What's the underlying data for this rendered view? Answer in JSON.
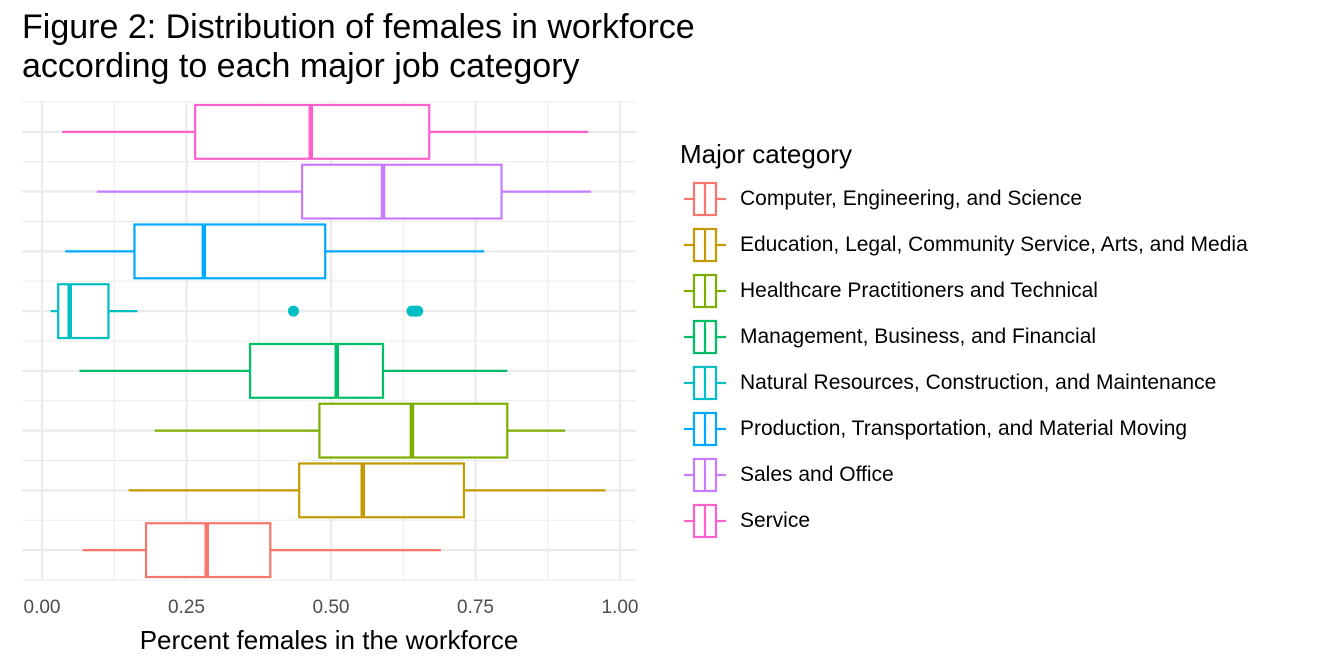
{
  "chart_data": {
    "type": "boxplot",
    "title": "Figure 2: Distribution of females in workforce\naccording to each major job category",
    "xlabel": "Percent females in the workforce",
    "ylabel": "",
    "xlim": [
      0,
      1
    ],
    "x_ticks": [
      "0.00",
      "0.25",
      "0.50",
      "0.75",
      "1.00"
    ],
    "grid": true,
    "legend_title": "Major category",
    "legend_position": "right",
    "series": [
      {
        "name": "Computer, Engineering, and Science",
        "color": "#F8766D",
        "whisker_low": 0.07,
        "q1": 0.18,
        "median": 0.285,
        "q3": 0.395,
        "whisker_high": 0.69,
        "outliers": []
      },
      {
        "name": "Education, Legal, Community Service, Arts, and Media",
        "color": "#C49A00",
        "whisker_low": 0.15,
        "q1": 0.445,
        "median": 0.555,
        "q3": 0.73,
        "whisker_high": 0.975,
        "outliers": []
      },
      {
        "name": "Healthcare Practitioners and Technical",
        "color": "#7CAE00",
        "whisker_low": 0.195,
        "q1": 0.48,
        "median": 0.64,
        "q3": 0.805,
        "whisker_high": 0.905,
        "outliers": []
      },
      {
        "name": "Management, Business, and Financial",
        "color": "#00BE67",
        "whisker_low": 0.065,
        "q1": 0.36,
        "median": 0.51,
        "q3": 0.59,
        "whisker_high": 0.805,
        "outliers": []
      },
      {
        "name": "Natural Resources, Construction, and Maintenance",
        "color": "#00BFC4",
        "whisker_low": 0.015,
        "q1": 0.028,
        "median": 0.048,
        "q3": 0.115,
        "whisker_high": 0.165,
        "outliers": [
          0.435,
          0.64,
          0.645,
          0.65
        ]
      },
      {
        "name": "Production, Transportation, and Material Moving",
        "color": "#00A9FF",
        "whisker_low": 0.04,
        "q1": 0.16,
        "median": 0.28,
        "q3": 0.49,
        "whisker_high": 0.765,
        "outliers": []
      },
      {
        "name": "Sales and Office",
        "color": "#C77CFF",
        "whisker_low": 0.095,
        "q1": 0.45,
        "median": 0.59,
        "q3": 0.795,
        "whisker_high": 0.95,
        "outliers": []
      },
      {
        "name": "Service",
        "color": "#FF61CC",
        "whisker_low": 0.035,
        "q1": 0.265,
        "median": 0.465,
        "q3": 0.67,
        "whisker_high": 0.945,
        "outliers": []
      }
    ]
  }
}
